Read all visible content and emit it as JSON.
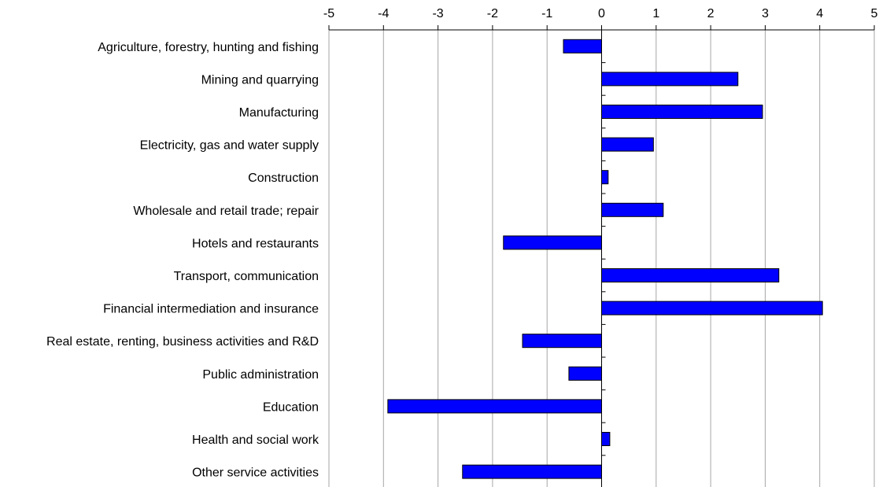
{
  "chart_data": {
    "type": "bar",
    "orientation": "horizontal",
    "categories": [
      "Agriculture, forestry, hunting and fishing",
      "Mining and quarrying",
      "Manufacturing",
      "Electricity, gas and water supply",
      "Construction",
      "Wholesale and retail trade; repair",
      "Hotels and restaurants",
      "Transport, communication",
      "Financial intermediation and insurance",
      "Real estate, renting, business activities and R&D",
      "Public administration",
      "Education",
      "Health and social work",
      "Other service activities"
    ],
    "values": [
      -0.7,
      2.5,
      2.95,
      0.95,
      0.12,
      1.13,
      -1.8,
      3.25,
      4.05,
      -1.45,
      -0.6,
      -3.92,
      0.15,
      -2.55
    ],
    "xlim": [
      -5,
      5
    ],
    "xticks": [
      "-5",
      "-4",
      "-3",
      "-2",
      "-1",
      "0",
      "1",
      "2",
      "3",
      "4",
      "5"
    ],
    "x_axis_position": "top",
    "grid": true,
    "bar_color": "#0000FF",
    "bar_edge_color": "#000000",
    "legend": false
  }
}
